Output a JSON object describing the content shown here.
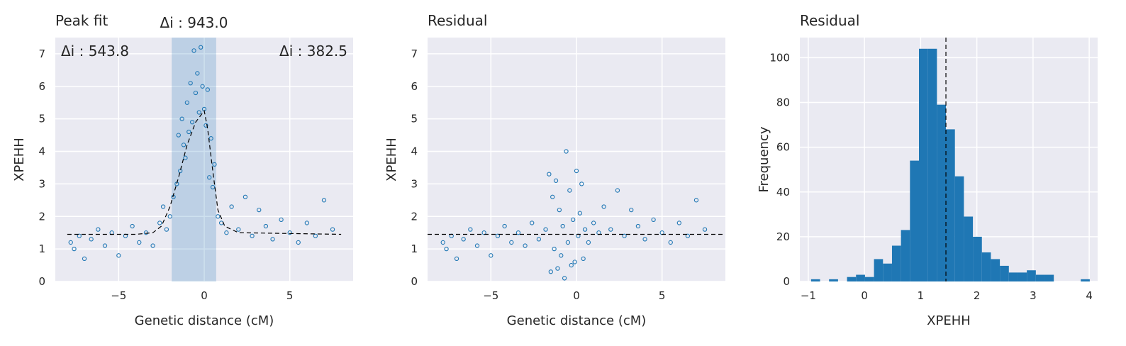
{
  "chart_data": [
    {
      "type": "scatter",
      "title": "Peak fit",
      "xlabel": "Genetic distance (cM)",
      "ylabel": "XPEHH",
      "xlim": [
        -8.7,
        8.7
      ],
      "ylim": [
        0,
        7.5
      ],
      "xticks": [
        -5,
        0,
        5
      ],
      "xtick_labels": [
        "−5",
        "0",
        "5"
      ],
      "yticks": [
        0,
        1,
        2,
        3,
        4,
        5,
        6,
        7
      ],
      "ytick_labels": [
        "0",
        "1",
        "2",
        "3",
        "4",
        "5",
        "6",
        "7"
      ],
      "grid": true,
      "highlight_region": [
        -1.9,
        0.7
      ],
      "annotations": {
        "left": "Δi : 543.8",
        "center": "Δi : 943.0",
        "right": "Δi : 382.5"
      },
      "fit_curve": {
        "style": "dashed",
        "color": "#000000",
        "x": [
          -8,
          -4,
          -3,
          -2.5,
          -2,
          -1.5,
          -1,
          -0.5,
          0,
          0.2,
          0.5,
          0.8,
          1.2,
          2,
          8
        ],
        "y": [
          1.45,
          1.45,
          1.5,
          1.7,
          2.3,
          3.2,
          4.2,
          4.9,
          5.25,
          4.7,
          3.4,
          2.2,
          1.7,
          1.5,
          1.45
        ]
      },
      "series": [
        {
          "x": [
            -7.8,
            -7.6,
            -7.3,
            -7.0,
            -6.6,
            -6.2,
            -5.8,
            -5.4,
            -5.0,
            -4.6,
            -4.2,
            -3.8,
            -3.4,
            -3.0,
            -2.6,
            -2.4,
            -2.2,
            -2.0,
            -1.8,
            -1.6,
            -1.5,
            -1.4,
            -1.3,
            -1.2,
            -1.1,
            -1.0,
            -0.9,
            -0.8,
            -0.7,
            -0.6,
            -0.5,
            -0.4,
            -0.3,
            -0.2,
            -0.1,
            0.0,
            0.1,
            0.2,
            0.3,
            0.4,
            0.5,
            0.6,
            0.8,
            1.0,
            1.3,
            1.6,
            2.0,
            2.4,
            2.8,
            3.2,
            3.6,
            4.0,
            4.5,
            5.0,
            5.5,
            6.0,
            6.5,
            7.0,
            7.5
          ],
          "y": [
            1.2,
            1.0,
            1.4,
            0.7,
            1.3,
            1.6,
            1.1,
            1.5,
            0.8,
            1.4,
            1.7,
            1.2,
            1.5,
            1.1,
            1.8,
            2.3,
            1.6,
            2.0,
            2.6,
            3.0,
            4.5,
            3.4,
            5.0,
            4.2,
            3.8,
            5.5,
            4.6,
            6.1,
            4.9,
            7.1,
            5.8,
            6.4,
            5.2,
            7.2,
            6.0,
            5.3,
            4.8,
            5.9,
            3.2,
            4.4,
            2.9,
            3.6,
            2.0,
            1.8,
            1.5,
            2.3,
            1.6,
            2.6,
            1.4,
            2.2,
            1.7,
            1.3,
            1.9,
            1.5,
            1.2,
            1.8,
            1.4,
            2.5,
            1.6
          ],
          "color": "#1f77b4"
        }
      ]
    },
    {
      "type": "scatter",
      "title": "Residual",
      "xlabel": "Genetic distance (cM)",
      "ylabel": "XPEHH",
      "xlim": [
        -8.7,
        8.7
      ],
      "ylim": [
        0,
        7.5
      ],
      "xticks": [
        -5,
        0,
        5
      ],
      "xtick_labels": [
        "−5",
        "0",
        "5"
      ],
      "yticks": [
        0,
        1,
        2,
        3,
        4,
        5,
        6,
        7
      ],
      "ytick_labels": [
        "0",
        "1",
        "2",
        "3",
        "4",
        "5",
        "6",
        "7"
      ],
      "grid": true,
      "reference_line": {
        "y": 1.45,
        "style": "dashed",
        "color": "#000000"
      },
      "series": [
        {
          "x": [
            -7.8,
            -7.6,
            -7.3,
            -7.0,
            -6.6,
            -6.2,
            -5.8,
            -5.4,
            -5.0,
            -4.6,
            -4.2,
            -3.8,
            -3.4,
            -3.0,
            -2.6,
            -2.2,
            -1.8,
            -1.6,
            -1.5,
            -1.4,
            -1.3,
            -1.2,
            -1.1,
            -1.0,
            -0.9,
            -0.8,
            -0.7,
            -0.6,
            -0.5,
            -0.4,
            -0.3,
            -0.2,
            -0.1,
            0.0,
            0.1,
            0.2,
            0.3,
            0.4,
            0.5,
            0.7,
            1.0,
            1.3,
            1.6,
            2.0,
            2.4,
            2.8,
            3.2,
            3.6,
            4.0,
            4.5,
            5.0,
            5.5,
            6.0,
            6.5,
            7.0,
            7.5
          ],
          "y": [
            1.2,
            1.0,
            1.4,
            0.7,
            1.3,
            1.6,
            1.1,
            1.5,
            0.8,
            1.4,
            1.7,
            1.2,
            1.5,
            1.1,
            1.8,
            1.3,
            1.6,
            3.3,
            0.3,
            2.6,
            1.0,
            3.1,
            0.4,
            2.2,
            0.8,
            1.7,
            0.1,
            4.0,
            1.2,
            2.8,
            0.5,
            1.9,
            0.6,
            3.4,
            1.4,
            2.1,
            3.0,
            0.7,
            1.6,
            1.2,
            1.8,
            1.5,
            2.3,
            1.6,
            2.8,
            1.4,
            2.2,
            1.7,
            1.3,
            1.9,
            1.5,
            1.2,
            1.8,
            1.4,
            2.5,
            1.6
          ],
          "color": "#1f77b4"
        }
      ]
    },
    {
      "type": "bar",
      "title": "Residual",
      "xlabel": "XPEHH",
      "ylabel": "Frequency",
      "xlim": [
        -1.15,
        4.15
      ],
      "ylim": [
        0,
        109
      ],
      "xticks": [
        -1,
        0,
        1,
        2,
        3,
        4
      ],
      "xtick_labels": [
        "−1",
        "0",
        "1",
        "2",
        "3",
        "4"
      ],
      "yticks": [
        0,
        20,
        40,
        60,
        80,
        100
      ],
      "ytick_labels": [
        "0",
        "20",
        "40",
        "60",
        "80",
        "100"
      ],
      "grid": true,
      "bin_width": 0.16,
      "reference_line": {
        "x": 1.45,
        "style": "dashed",
        "color": "#000000"
      },
      "bins": [
        -0.95,
        -0.79,
        -0.63,
        -0.47,
        -0.31,
        -0.15,
        0.01,
        0.17,
        0.33,
        0.49,
        0.65,
        0.81,
        0.97,
        1.13,
        1.29,
        1.45,
        1.61,
        1.77,
        1.93,
        2.09,
        2.25,
        2.41,
        2.57,
        2.73,
        2.89,
        3.05,
        3.21,
        3.37,
        3.53,
        3.69,
        3.85
      ],
      "values": [
        1,
        0,
        1,
        0,
        2,
        3,
        2,
        10,
        8,
        16,
        23,
        54,
        104,
        104,
        79,
        68,
        47,
        29,
        20,
        13,
        10,
        7,
        4,
        4,
        5,
        3,
        3,
        0,
        0,
        0,
        1
      ],
      "color": "#1f77b4"
    }
  ]
}
